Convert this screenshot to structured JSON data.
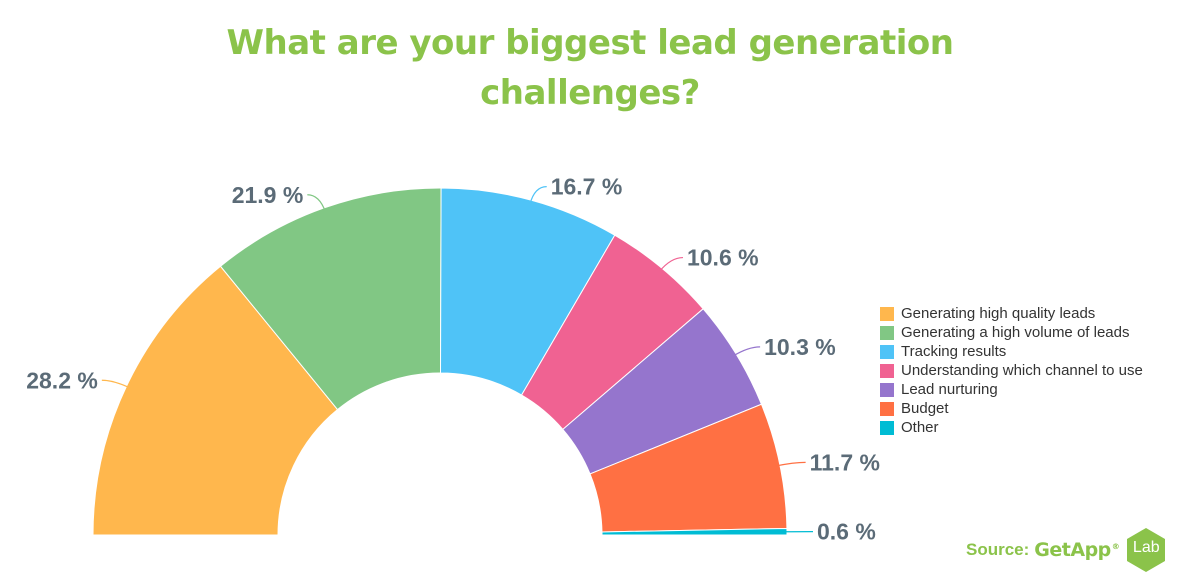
{
  "chart_data": {
    "type": "pie",
    "title_lines": [
      "What are your biggest lead generation",
      "challenges?"
    ],
    "categories": [
      "Generating high quality leads",
      "Generating a high volume of leads",
      "Tracking results",
      "Understanding which channel to use",
      "Lead nurturing",
      "Budget",
      "Other"
    ],
    "values": [
      28.2,
      21.9,
      16.7,
      10.6,
      10.3,
      11.7,
      0.6
    ],
    "value_labels": [
      "28.2 %",
      "21.9 %",
      "16.7 %",
      "10.6 %",
      "10.3 %",
      "11.7 %",
      "0.6 %"
    ],
    "colors": [
      "#ffb74d",
      "#81c784",
      "#4fc3f7",
      "#f06292",
      "#9575cd",
      "#ff7043",
      "#00bcd4"
    ],
    "shape": "semicircle donut",
    "legend_position": "right"
  },
  "source": {
    "prefix": "Source:",
    "brand": "GetApp",
    "registered": "®",
    "badge": "Lab"
  }
}
